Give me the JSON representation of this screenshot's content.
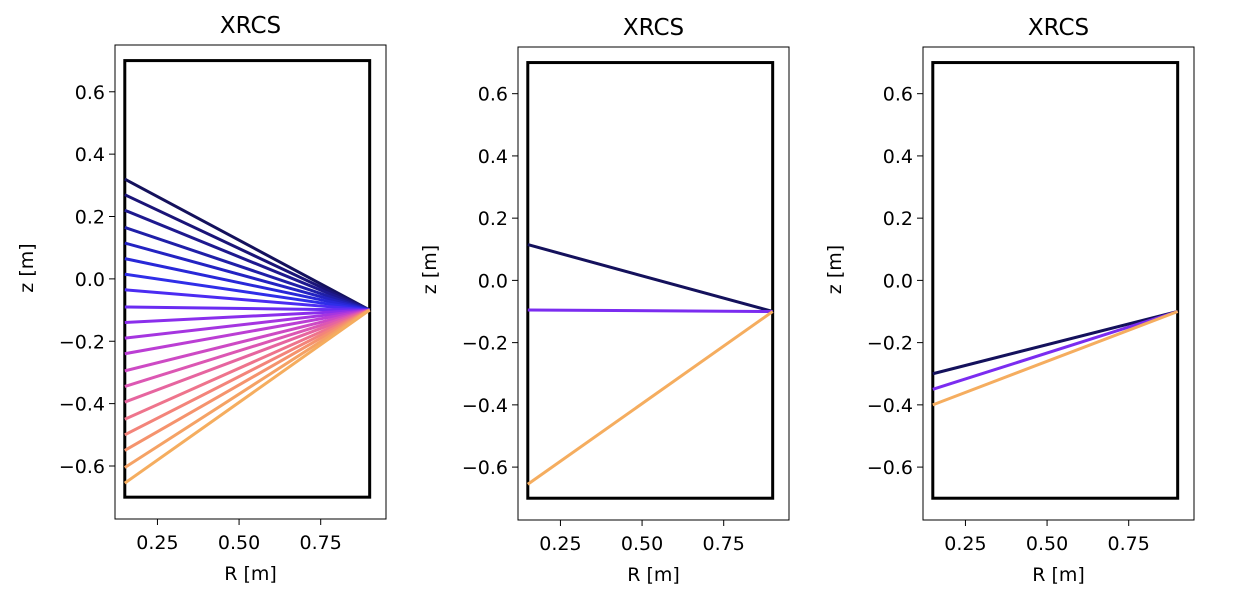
{
  "chart_data": [
    {
      "type": "line",
      "title": "XRCS",
      "xlabel": "R [m]",
      "ylabel": "z [m]",
      "xlim": [
        0.12,
        0.95
      ],
      "ylim": [
        -0.77,
        0.75
      ],
      "xticks": [
        0.25,
        0.5,
        0.75
      ],
      "xtick_labels": [
        "0.25",
        "0.50",
        "0.75"
      ],
      "yticks": [
        -0.6,
        -0.4,
        -0.2,
        0.0,
        0.2,
        0.4,
        0.6
      ],
      "ytick_labels": [
        "−0.6",
        "−0.4",
        "−0.2",
        "0.0",
        "0.2",
        "0.4",
        "0.6"
      ],
      "grid": false,
      "legend": false,
      "vessel": {
        "r": [
          0.15,
          0.9
        ],
        "z": [
          -0.7,
          0.7
        ],
        "color": "#000000"
      },
      "origin": {
        "r": 0.9,
        "z": -0.1
      },
      "series": [
        {
          "r_end": 0.15,
          "z_end": 0.32,
          "color": "#14115c"
        },
        {
          "r_end": 0.15,
          "z_end": 0.27,
          "color": "#1a1478"
        },
        {
          "r_end": 0.15,
          "z_end": 0.22,
          "color": "#1e198f"
        },
        {
          "r_end": 0.15,
          "z_end": 0.165,
          "color": "#1f1fa8"
        },
        {
          "r_end": 0.15,
          "z_end": 0.115,
          "color": "#2323c2"
        },
        {
          "r_end": 0.15,
          "z_end": 0.065,
          "color": "#2828d8"
        },
        {
          "r_end": 0.15,
          "z_end": 0.015,
          "color": "#2f2ee8"
        },
        {
          "r_end": 0.15,
          "z_end": -0.035,
          "color": "#4b2cf2"
        },
        {
          "r_end": 0.15,
          "z_end": -0.09,
          "color": "#6a2cf2"
        },
        {
          "r_end": 0.15,
          "z_end": -0.14,
          "color": "#8a2eec"
        },
        {
          "r_end": 0.15,
          "z_end": -0.19,
          "color": "#a535e0"
        },
        {
          "r_end": 0.15,
          "z_end": -0.24,
          "color": "#bb3ed4"
        },
        {
          "r_end": 0.15,
          "z_end": -0.295,
          "color": "#cd4ac4"
        },
        {
          "r_end": 0.15,
          "z_end": -0.345,
          "color": "#dc57b3"
        },
        {
          "r_end": 0.15,
          "z_end": -0.395,
          "color": "#e6659f"
        },
        {
          "r_end": 0.15,
          "z_end": -0.45,
          "color": "#ee748c"
        },
        {
          "r_end": 0.15,
          "z_end": -0.5,
          "color": "#f3847a"
        },
        {
          "r_end": 0.15,
          "z_end": -0.55,
          "color": "#f5936d"
        },
        {
          "r_end": 0.15,
          "z_end": -0.605,
          "color": "#f5a265"
        },
        {
          "r_end": 0.15,
          "z_end": -0.655,
          "color": "#f5ad5f"
        }
      ]
    },
    {
      "type": "line",
      "title": "XRCS",
      "xlabel": "R [m]",
      "ylabel": "z [m]",
      "xlim": [
        0.12,
        0.95
      ],
      "ylim": [
        -0.77,
        0.75
      ],
      "xticks": [
        0.25,
        0.5,
        0.75
      ],
      "xtick_labels": [
        "0.25",
        "0.50",
        "0.75"
      ],
      "yticks": [
        -0.6,
        -0.4,
        -0.2,
        0.0,
        0.2,
        0.4,
        0.6
      ],
      "ytick_labels": [
        "−0.6",
        "−0.4",
        "−0.2",
        "0.0",
        "0.2",
        "0.4",
        "0.6"
      ],
      "grid": false,
      "legend": false,
      "vessel": {
        "r": [
          0.15,
          0.9
        ],
        "z": [
          -0.7,
          0.7
        ],
        "color": "#000000"
      },
      "origin": {
        "r": 0.9,
        "z": -0.1
      },
      "series": [
        {
          "r_end": 0.15,
          "z_end": 0.115,
          "color": "#14115c"
        },
        {
          "r_end": 0.15,
          "z_end": -0.095,
          "color": "#7b2cf0"
        },
        {
          "r_end": 0.15,
          "z_end": -0.655,
          "color": "#f5ad5f"
        }
      ]
    },
    {
      "type": "line",
      "title": "XRCS",
      "xlabel": "R [m]",
      "ylabel": "z [m]",
      "xlim": [
        0.12,
        0.95
      ],
      "ylim": [
        -0.77,
        0.75
      ],
      "xticks": [
        0.25,
        0.5,
        0.75
      ],
      "xtick_labels": [
        "0.25",
        "0.50",
        "0.75"
      ],
      "yticks": [
        -0.6,
        -0.4,
        -0.2,
        0.0,
        0.2,
        0.4,
        0.6
      ],
      "ytick_labels": [
        "−0.6",
        "−0.4",
        "−0.2",
        "0.0",
        "0.2",
        "0.4",
        "0.6"
      ],
      "grid": false,
      "legend": false,
      "vessel": {
        "r": [
          0.15,
          0.9
        ],
        "z": [
          -0.7,
          0.7
        ],
        "color": "#000000"
      },
      "origin": {
        "r": 0.9,
        "z": -0.1
      },
      "series": [
        {
          "r_end": 0.15,
          "z_end": -0.3,
          "color": "#14115c"
        },
        {
          "r_end": 0.15,
          "z_end": -0.35,
          "color": "#7b2cf0"
        },
        {
          "r_end": 0.15,
          "z_end": -0.4,
          "color": "#f5ad5f"
        }
      ]
    }
  ]
}
